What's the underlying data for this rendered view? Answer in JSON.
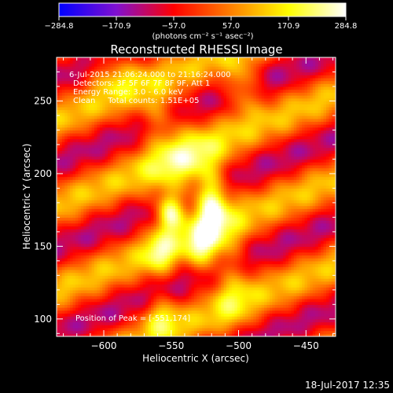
{
  "chart_data": {
    "type": "heatmap",
    "title": "Reconstructed RHESSI Image",
    "xlabel": "Heliocentric X (arcsec)",
    "ylabel": "Heliocentric Y (arcsec)",
    "xlim": [
      -635,
      -428
    ],
    "ylim": [
      88,
      280
    ],
    "xticks": [
      -600,
      -550,
      -500,
      -450
    ],
    "xtick_labels": [
      "−600",
      "−550",
      "−500",
      "−450"
    ],
    "yticks": [
      100,
      150,
      200,
      250
    ],
    "ytick_labels": [
      "100",
      "150",
      "200",
      "250"
    ],
    "colorbar": {
      "min": -284.8,
      "max": 284.8,
      "ticks": [
        -284.8,
        -170.9,
        -57.0,
        57.0,
        170.9,
        284.8
      ],
      "tick_labels": [
        "−284.8",
        "−170.9",
        "−57.0",
        "57.0",
        "170.9",
        "284.8"
      ],
      "unit_label": "(photons cm⁻² s⁻¹ asec⁻²)",
      "colors": [
        "#0000ff",
        "#8010d0",
        "#ff0000",
        "#ff8000",
        "#ffff00",
        "#ffffff"
      ]
    },
    "info_lines": [
      "6-Jul-2015 21:06:24.000 to 21:16:24.000",
      "Detectors: 3F 5F 6F 7F 8F 9F, Att 1",
      "Energy Range: 3.0 - 6.0 keV",
      "Clean     Total counts: 1.51E+05"
    ],
    "peak_label": "Position of Peak = [-551,174]",
    "peak": [
      -551,
      174
    ],
    "components": [
      {
        "x": -551,
        "y": 174,
        "sx": 7,
        "sy": 9,
        "amp": 285
      },
      {
        "x": -520,
        "y": 180,
        "sx": 8,
        "sy": 15,
        "amp": 260
      },
      {
        "x": -527,
        "y": 148,
        "sx": 9,
        "sy": 12,
        "amp": 190
      },
      {
        "x": -558,
        "y": 145,
        "sx": 8,
        "sy": 11,
        "amp": 150
      },
      {
        "x": -540,
        "y": 205,
        "sx": 20,
        "sy": 22,
        "amp": 150
      },
      {
        "x": -497,
        "y": 260,
        "sx": 9,
        "sy": 12,
        "amp": 165
      },
      {
        "x": -592,
        "y": 270,
        "sx": 14,
        "sy": 10,
        "amp": 120
      },
      {
        "x": -558,
        "y": 103,
        "sx": 9,
        "sy": 10,
        "amp": 150
      },
      {
        "x": -505,
        "y": 130,
        "sx": 10,
        "sy": 25,
        "amp": 120
      },
      {
        "x": -560,
        "y": 240,
        "sx": 10,
        "sy": 12,
        "amp": 110
      }
    ],
    "stripes": {
      "angle_deg": -70,
      "period_arcsec": 55,
      "amplitude": 120
    }
  },
  "footer": {
    "timestamp": "18-Jul-2017 12:35"
  }
}
